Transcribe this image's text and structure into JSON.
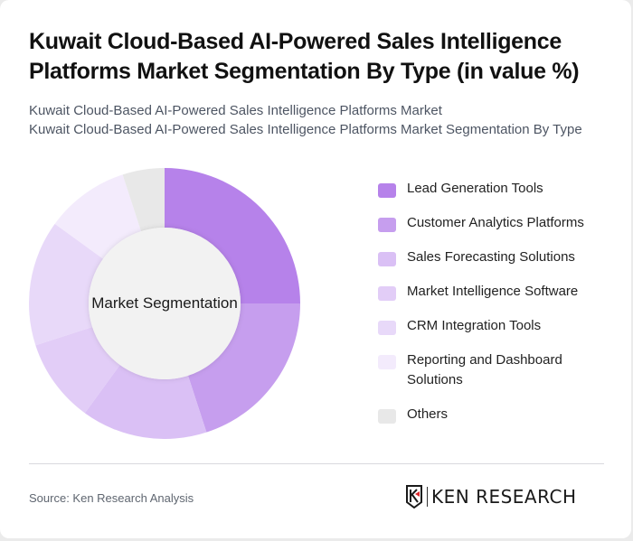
{
  "header": {
    "title": "Kuwait Cloud-Based AI-Powered Sales Intelligence Platforms Market Segmentation By Type (in value %)",
    "subtitle_line1": "Kuwait Cloud-Based AI-Powered Sales Intelligence Platforms Market",
    "subtitle_line2": "Kuwait Cloud-Based AI-Powered Sales Intelligence Platforms Market Segmentation By Type"
  },
  "chart": {
    "center_label": "Market Segmentation"
  },
  "legend": {
    "items": [
      {
        "label": "Lead Generation Tools",
        "color": "#b682ea"
      },
      {
        "label": "Customer Analytics Platforms",
        "color": "#c69eee"
      },
      {
        "label": "Sales Forecasting Solutions",
        "color": "#dac0f5"
      },
      {
        "label": "Market Intelligence Software",
        "color": "#e2cdf7"
      },
      {
        "label": "CRM Integration Tools",
        "color": "#e8d9f9"
      },
      {
        "label": "Reporting and Dashboard Solutions",
        "color": "#f3ebfc"
      },
      {
        "label": "Others",
        "color": "#e8e8e8"
      }
    ]
  },
  "footer": {
    "source": "Source: Ken Research Analysis",
    "logo_text": "KEN RESEARCH"
  },
  "chart_data": {
    "type": "pie",
    "subtype": "donut",
    "title": "Kuwait Cloud-Based AI-Powered Sales Intelligence Platforms Market Segmentation By Type (in value %)",
    "center_label": "Market Segmentation",
    "categories": [
      "Lead Generation Tools",
      "Customer Analytics Platforms",
      "Sales Forecasting Solutions",
      "Market Intelligence Software",
      "CRM Integration Tools",
      "Reporting and Dashboard Solutions",
      "Others"
    ],
    "values": [
      25,
      20,
      15,
      10,
      15,
      10,
      5
    ],
    "colors": [
      "#b682ea",
      "#c69eee",
      "#dac0f5",
      "#e2cdf7",
      "#e8d9f9",
      "#f3ebfc",
      "#e8e8e8"
    ],
    "unit": "%",
    "legend_position": "right",
    "start_angle": "12 o'clock, clockwise"
  }
}
